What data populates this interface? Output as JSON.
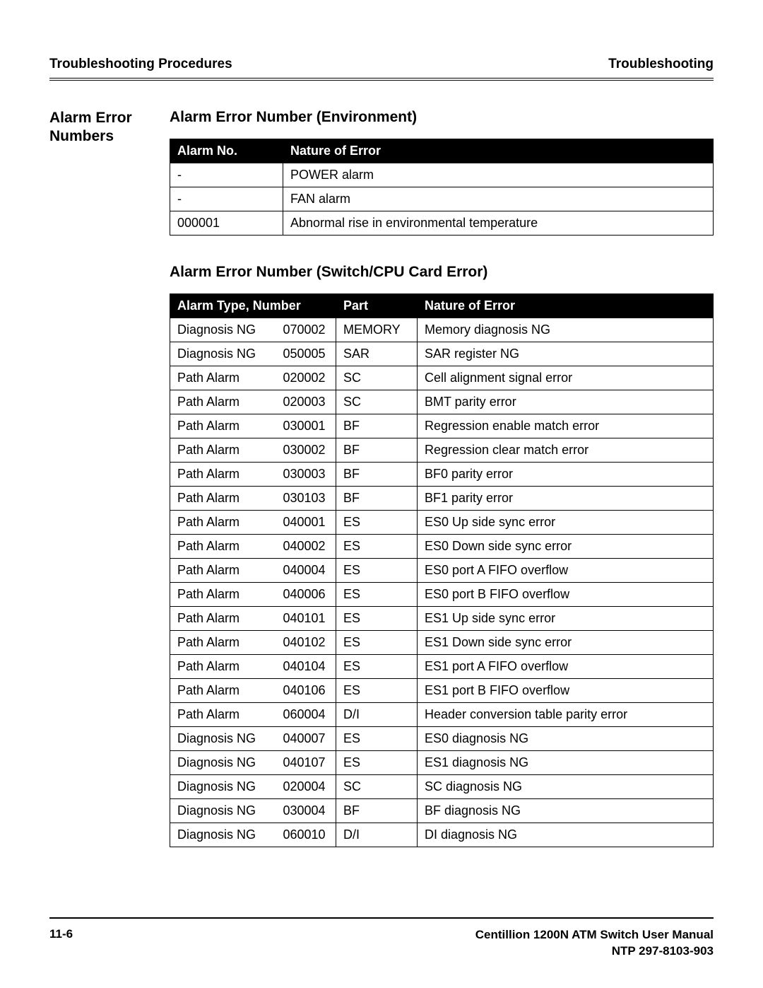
{
  "header": {
    "left": "Troubleshooting Procedures",
    "right": "Troubleshooting"
  },
  "side_heading": "Alarm Error Numbers",
  "section1": {
    "title": "Alarm Error Number (Environment)",
    "table": {
      "columns": [
        "Alarm No.",
        "Nature of Error"
      ],
      "rows": [
        [
          "-",
          "POWER alarm"
        ],
        [
          "-",
          "FAN alarm"
        ],
        [
          "000001",
          "Abnormal rise in environmental temperature"
        ]
      ]
    }
  },
  "section2": {
    "title": "Alarm Error Number (Switch/CPU Card Error)",
    "table": {
      "columns": [
        "Alarm Type, Number",
        "Part",
        "Nature of Error"
      ],
      "rows": [
        [
          "Diagnosis NG",
          "070002",
          "MEMORY",
          "Memory diagnosis NG"
        ],
        [
          "Diagnosis NG",
          "050005",
          "SAR",
          "SAR register NG"
        ],
        [
          "Path Alarm",
          "020002",
          "SC",
          "Cell alignment signal error"
        ],
        [
          "Path Alarm",
          "020003",
          "SC",
          "BMT parity error"
        ],
        [
          "Path Alarm",
          "030001",
          "BF",
          "Regression enable match error"
        ],
        [
          "Path Alarm",
          "030002",
          "BF",
          "Regression clear match error"
        ],
        [
          "Path Alarm",
          "030003",
          "BF",
          "BF0 parity error"
        ],
        [
          "Path Alarm",
          "030103",
          "BF",
          "BF1 parity error"
        ],
        [
          "Path Alarm",
          "040001",
          "ES",
          "ES0 Up side sync error"
        ],
        [
          "Path Alarm",
          "040002",
          "ES",
          "ES0 Down side sync error"
        ],
        [
          "Path Alarm",
          "040004",
          "ES",
          "ES0 port A FIFO overflow"
        ],
        [
          "Path Alarm",
          "040006",
          "ES",
          "ES0 port B FIFO overflow"
        ],
        [
          "Path Alarm",
          "040101",
          "ES",
          "ES1 Up side sync error"
        ],
        [
          "Path Alarm",
          "040102",
          "ES",
          "ES1 Down side sync error"
        ],
        [
          "Path Alarm",
          "040104",
          "ES",
          "ES1 port A FIFO overflow"
        ],
        [
          "Path Alarm",
          "040106",
          "ES",
          "ES1 port B FIFO overflow"
        ],
        [
          "Path Alarm",
          "060004",
          "D/I",
          "Header conversion table parity error"
        ],
        [
          "Diagnosis NG",
          "040007",
          "ES",
          "ES0 diagnosis NG"
        ],
        [
          "Diagnosis NG",
          "040107",
          "ES",
          "ES1 diagnosis NG"
        ],
        [
          "Diagnosis NG",
          "020004",
          "SC",
          "SC diagnosis NG"
        ],
        [
          "Diagnosis NG",
          "030004",
          "BF",
          "BF diagnosis NG"
        ],
        [
          "Diagnosis NG",
          "060010",
          "D/I",
          "DI diagnosis NG"
        ]
      ]
    }
  },
  "footer": {
    "page": "11-6",
    "line1": "Centillion 1200N ATM Switch User Manual",
    "line2": "NTP 297-8103-903"
  }
}
